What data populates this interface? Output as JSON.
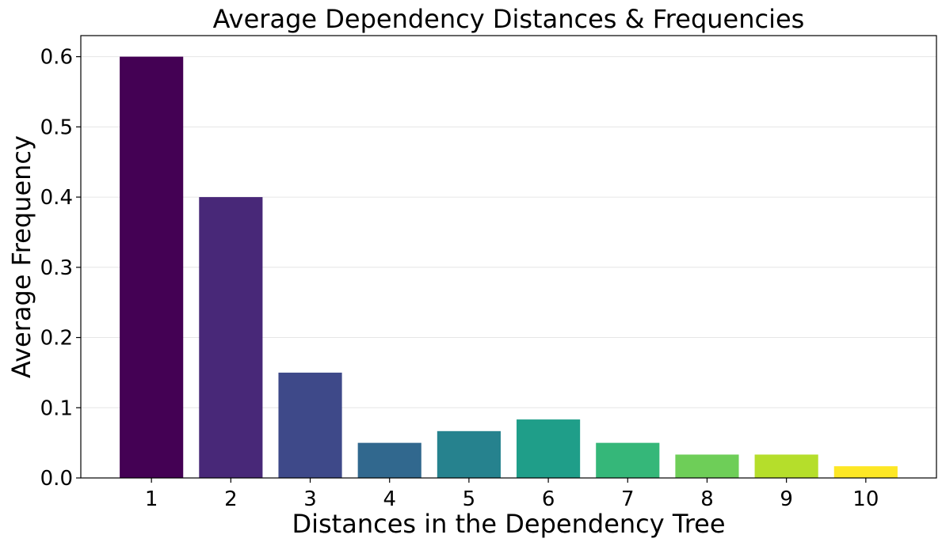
{
  "chart_data": {
    "type": "bar",
    "title": "Average Dependency Distances & Frequencies",
    "xlabel": "Distances in the Dependency Tree",
    "ylabel": "Average Frequency",
    "categories": [
      "1",
      "2",
      "3",
      "4",
      "5",
      "6",
      "7",
      "8",
      "9",
      "10"
    ],
    "values": [
      0.6,
      0.4,
      0.15,
      0.05,
      0.0667,
      0.0833,
      0.05,
      0.0333,
      0.0333,
      0.0167
    ],
    "colors": [
      "#440154",
      "#482878",
      "#3e4989",
      "#31688e",
      "#26828e",
      "#1f9e89",
      "#35b779",
      "#6ece58",
      "#b5de2b",
      "#fde725"
    ],
    "ylim": [
      0,
      0.63
    ],
    "yticks": [
      "0.0",
      "0.1",
      "0.2",
      "0.3",
      "0.4",
      "0.5",
      "0.6"
    ],
    "grid": "y"
  }
}
